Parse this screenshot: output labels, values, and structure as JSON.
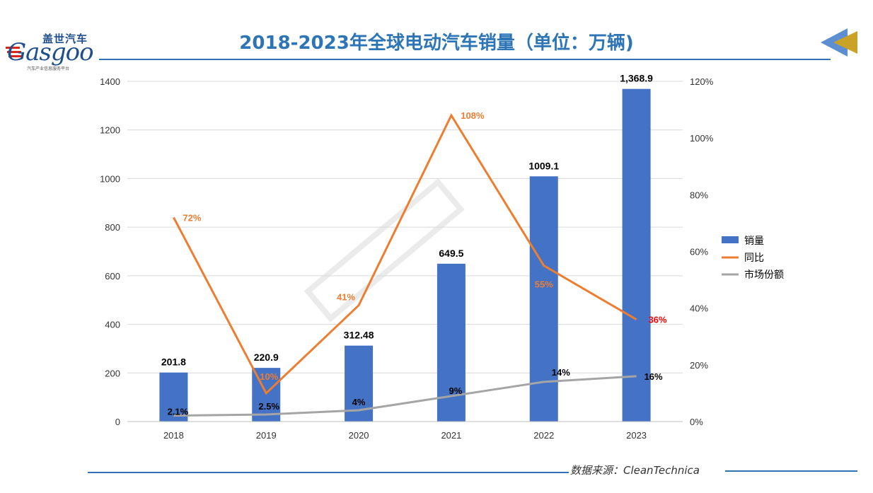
{
  "title": "2018-2023年全球电动汽车销量（单位：万辆)",
  "logo": {
    "cn": "盖世汽车",
    "en": "Gasgoo",
    "sub": "汽车产业信息服务平台"
  },
  "source": "数据来源：CleanTechnica",
  "chart_data": {
    "type": "bar",
    "categories": [
      "2018",
      "2019",
      "2020",
      "2021",
      "2022",
      "2023"
    ],
    "series": [
      {
        "name": "销量",
        "type": "bar",
        "axis": "left",
        "color": "#4472c4",
        "values": [
          201.8,
          220.9,
          312.48,
          649.5,
          1009.1,
          1368.9
        ],
        "labels": [
          "201.8",
          "220.9",
          "312.48",
          "649.5",
          "1009.1",
          "1,368.9"
        ]
      },
      {
        "name": "同比",
        "type": "line",
        "axis": "right",
        "color": "#ed7d31",
        "values": [
          72,
          10,
          41,
          108,
          55,
          36
        ],
        "labels": [
          "72%",
          "10%",
          "41%",
          "108%",
          "55%",
          "36%"
        ]
      },
      {
        "name": "市场份额",
        "type": "line",
        "axis": "right",
        "color": "#a5a5a5",
        "values": [
          2.1,
          2.5,
          4,
          9,
          14,
          16
        ],
        "labels": [
          "2.1%",
          "2.5%",
          "4%",
          "9%",
          "14%",
          "16%"
        ]
      }
    ],
    "y_left": {
      "ylim": [
        0,
        1400
      ],
      "ticks": [
        0,
        200,
        400,
        600,
        800,
        1000,
        1200,
        1400
      ]
    },
    "y_right": {
      "ylim": [
        0,
        120
      ],
      "ticks": [
        "0%",
        "20%",
        "40%",
        "60%",
        "80%",
        "100%",
        "120%"
      ]
    },
    "grid": true,
    "legend_position": "right"
  }
}
